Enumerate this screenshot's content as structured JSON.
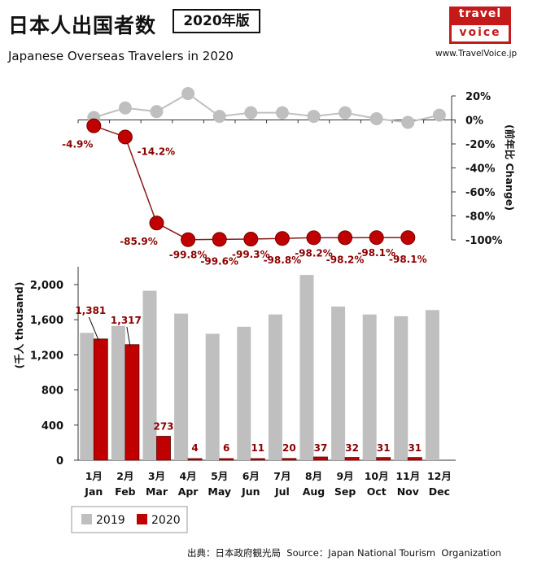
{
  "header": {
    "title_jp": "日本人出国者数",
    "badge": "2020年版",
    "subtitle": "Japanese Overseas Travelers in 2020",
    "logo_top": "travel",
    "logo_bottom": "voice",
    "site": "www.TravelVoice.jp"
  },
  "footer": {
    "source": "出典：日本政府観光局  Source：Japan National Tourism  Organization"
  },
  "colors": {
    "y2019": "#bfbfbf",
    "y2020": "#c00000",
    "label2020": "#8b0000",
    "line2020": "#8b1a1a"
  },
  "chart_data": [
    {
      "type": "line",
      "ylabel": "(前年比 Change)",
      "ylim": [
        -100,
        25
      ],
      "yticks": [
        "20%",
        "0%",
        "-20%",
        "-40%",
        "-60%",
        "-80%",
        "-100%"
      ],
      "categories": [
        "Jan",
        "Feb",
        "Mar",
        "Apr",
        "May",
        "Jun",
        "Jul",
        "Aug",
        "Sep",
        "Oct",
        "Nov",
        "Dec"
      ],
      "series": [
        {
          "name": "2019",
          "values": [
            2,
            10,
            7,
            22,
            3,
            6,
            6,
            3,
            6,
            1,
            -2,
            4
          ]
        },
        {
          "name": "2020",
          "values": [
            -4.9,
            -14.2,
            -85.9,
            -99.8,
            -99.6,
            -99.3,
            -98.8,
            -98.2,
            -98.2,
            -98.1,
            -98.1,
            null
          ],
          "labels": [
            "-4.9%",
            "-14.2%",
            "-85.9%",
            "-99.8%",
            "-99.6%",
            "-99.3%",
            "-98.8%",
            "-98.2%",
            "-98.2%",
            "-98.1%",
            "-98.1%",
            ""
          ]
        }
      ]
    },
    {
      "type": "bar",
      "ylabel": "(千人  thousand)",
      "ylim": [
        0,
        2100
      ],
      "yticks": [
        "0",
        "400",
        "800",
        "1,200",
        "1,600",
        "2,000"
      ],
      "categories_jp": [
        "1月",
        "2月",
        "3月",
        "4月",
        "5月",
        "6月",
        "7月",
        "8月",
        "9月",
        "10月",
        "11月",
        "12月"
      ],
      "categories": [
        "Jan",
        "Feb",
        "Mar",
        "Apr",
        "May",
        "Jun",
        "Jul",
        "Aug",
        "Sep",
        "Oct",
        "Nov",
        "Dec"
      ],
      "series": [
        {
          "name": "2019",
          "values": [
            1450,
            1530,
            1930,
            1670,
            1440,
            1520,
            1660,
            2110,
            1750,
            1660,
            1640,
            1710
          ]
        },
        {
          "name": "2020",
          "values": [
            1381,
            1317,
            273,
            4,
            6,
            11,
            20,
            37,
            32,
            31,
            31,
            null
          ],
          "labels": [
            "1,381",
            "1,317",
            "273",
            "4",
            "6",
            "11",
            "20",
            "37",
            "32",
            "31",
            "31",
            ""
          ]
        }
      ],
      "legend": [
        "2019",
        "2020"
      ],
      "legend_position": "bottom-left"
    }
  ]
}
